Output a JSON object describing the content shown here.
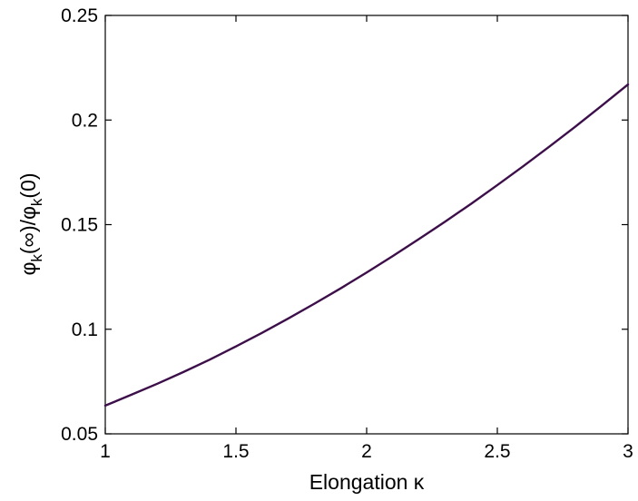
{
  "chart_data": {
    "type": "line",
    "title": "",
    "xlabel": "Elongation κ",
    "ylabel": {
      "phi": "φ",
      "k": "k",
      "infinity": "(∞)/",
      "zero": "(0)"
    },
    "xlim": [
      1,
      3
    ],
    "ylim": [
      0.05,
      0.25
    ],
    "xticks": [
      "1",
      "1.5",
      "2",
      "2.5",
      "3"
    ],
    "yticks": [
      "0.05",
      "0.1",
      "0.15",
      "0.2",
      "0.25"
    ],
    "grid": false,
    "legend": "none",
    "line_color": "#3d0f4a",
    "series": [
      {
        "x": [
          1.0,
          1.1,
          1.2,
          1.3,
          1.4,
          1.5,
          1.6,
          1.7,
          1.8,
          1.9,
          2.0,
          2.1,
          2.2,
          2.3,
          2.4,
          2.5,
          2.6,
          2.7,
          2.8,
          2.9,
          3.0
        ],
        "values": [
          0.0635,
          0.0687,
          0.074,
          0.0796,
          0.0855,
          0.0918,
          0.0983,
          0.1051,
          0.1122,
          0.1195,
          0.1271,
          0.135,
          0.1431,
          0.1514,
          0.16,
          0.1689,
          0.178,
          0.1874,
          0.197,
          0.2069,
          0.217
        ]
      }
    ]
  }
}
